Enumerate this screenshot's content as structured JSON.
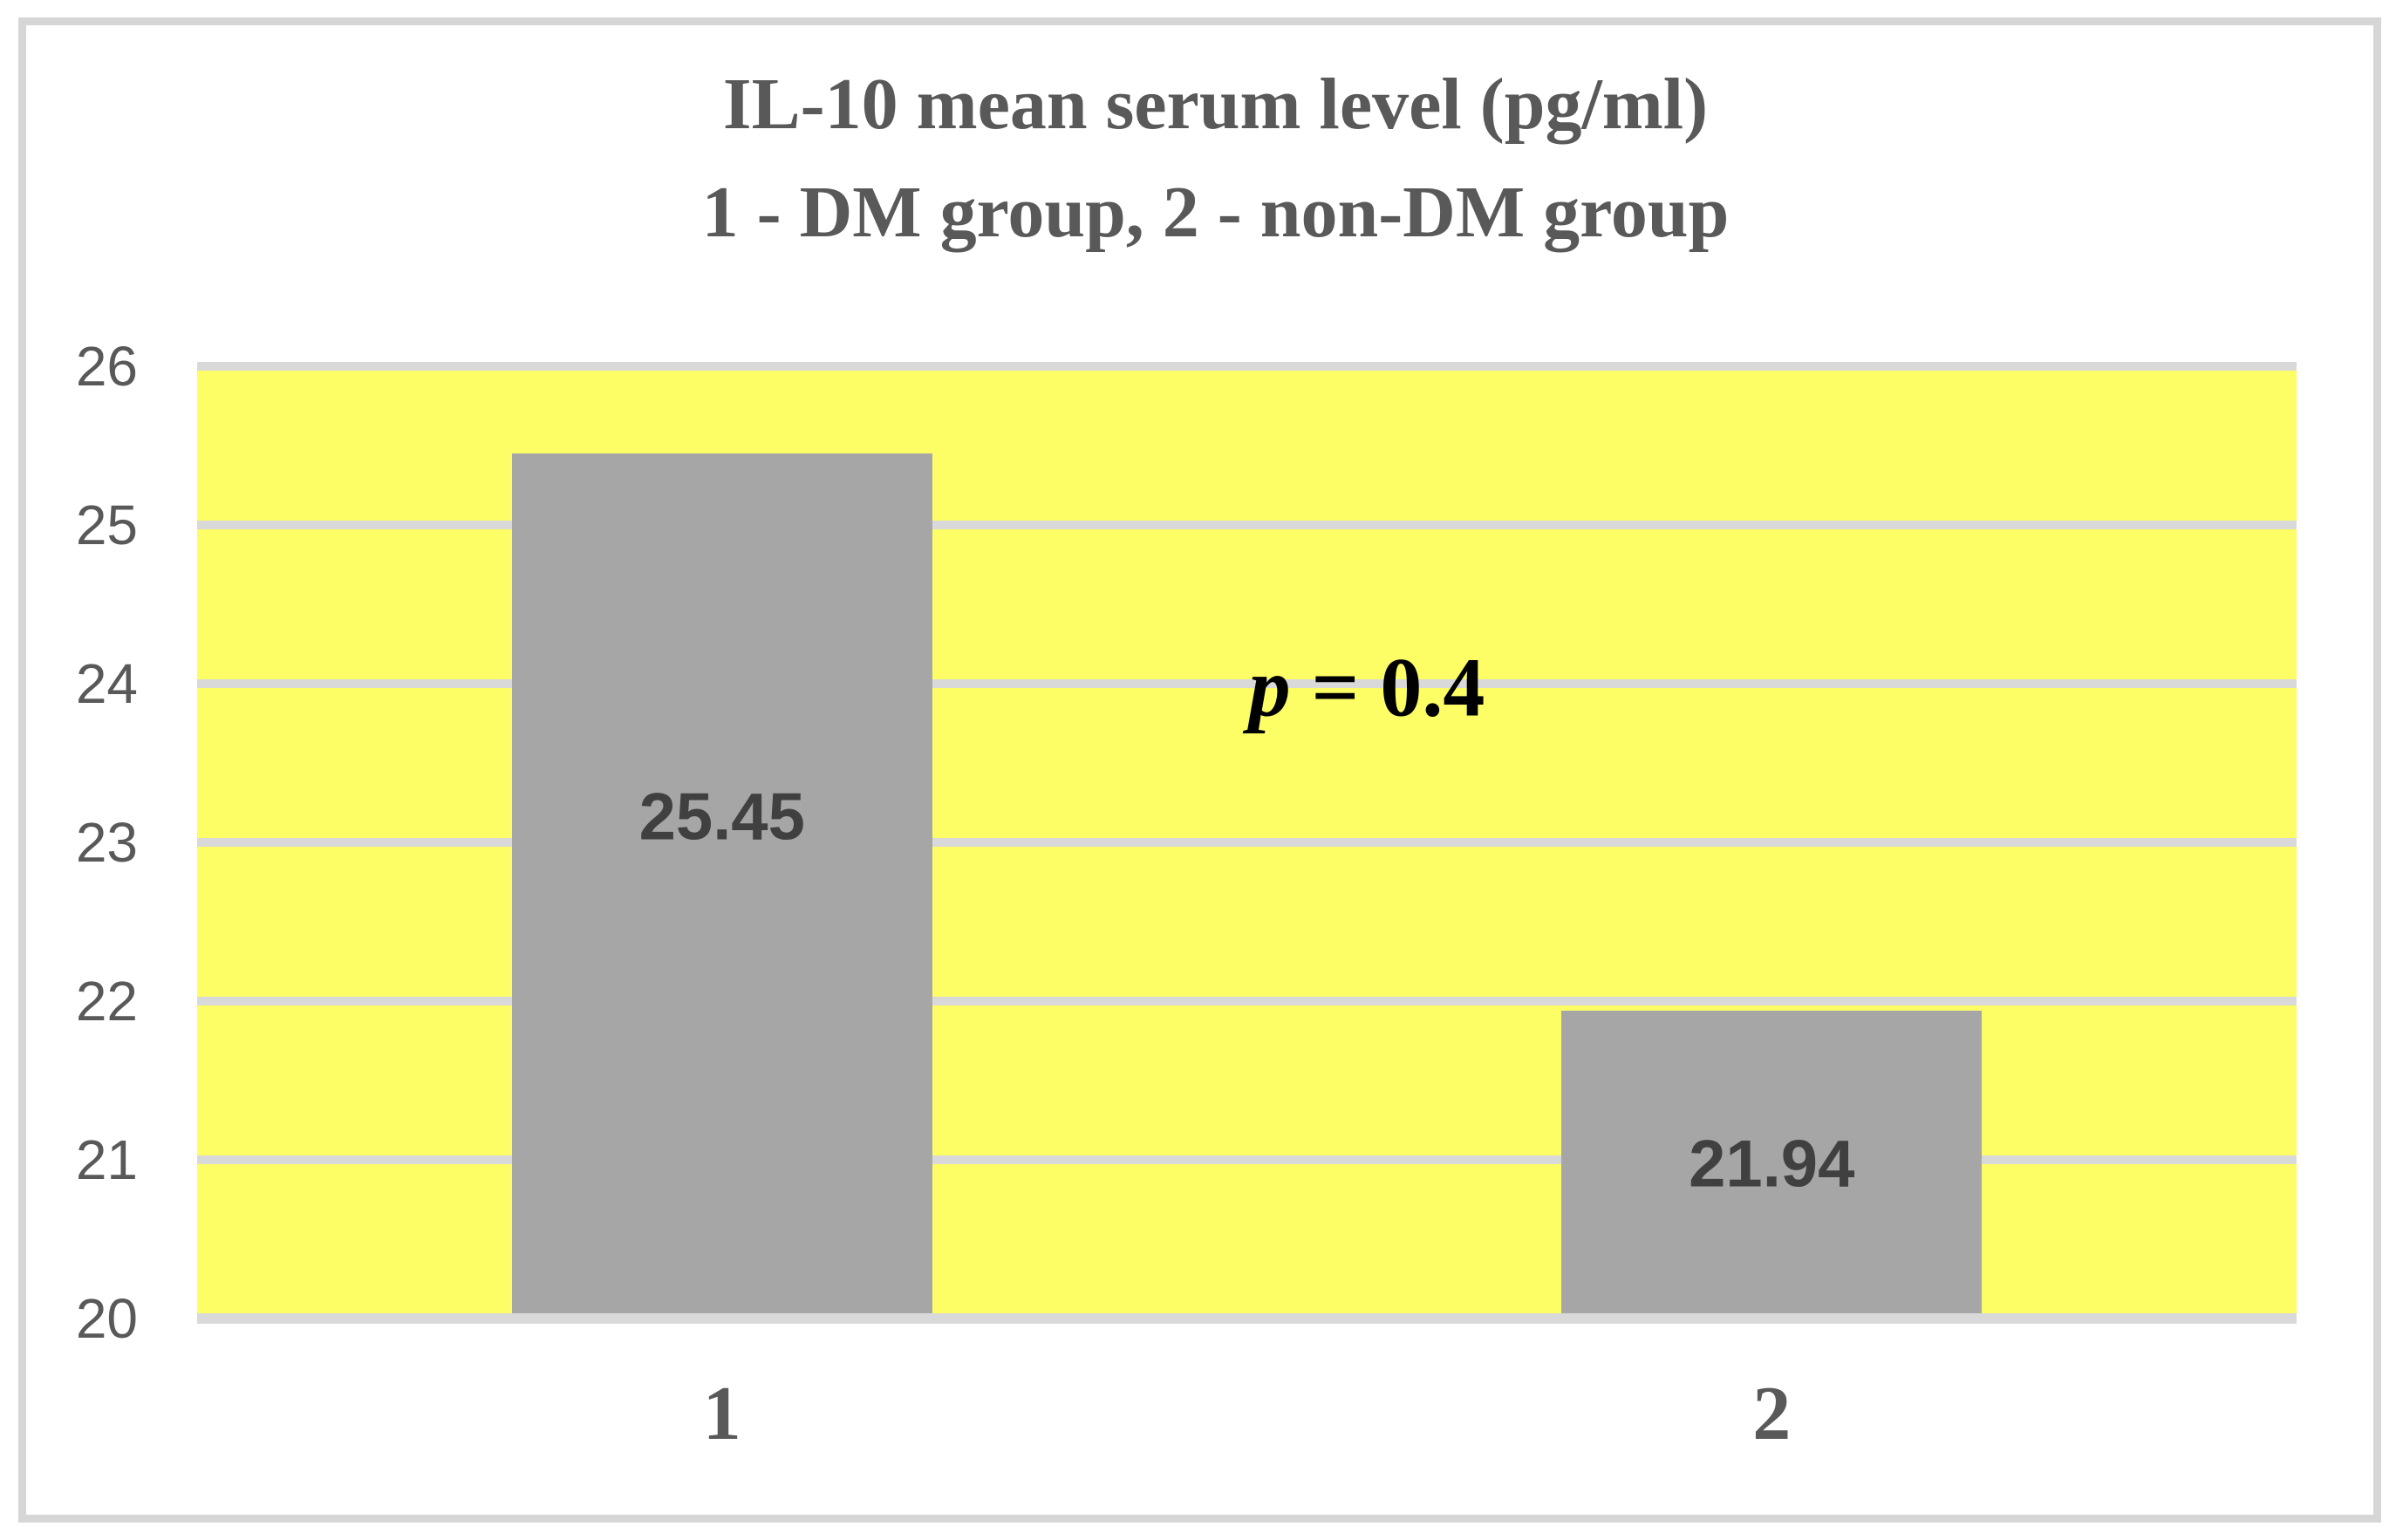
{
  "chart_data": {
    "type": "bar",
    "title_line1": "IL-10 mean serum level (pg/ml)",
    "title_line2": "1 - DM group, 2 - non-DM group",
    "categories": [
      "1",
      "2"
    ],
    "series": [
      {
        "name": "IL-10 mean serum level (pg/ml)",
        "values": [
          25.45,
          21.94
        ]
      }
    ],
    "bar_labels": [
      "25.45",
      "21.94"
    ],
    "yticks": [
      26,
      25,
      24,
      23,
      22,
      21,
      20
    ],
    "ylim": [
      20,
      26
    ],
    "xlabel": "",
    "ylabel": "",
    "grid": "horizontal",
    "legend": "none",
    "annotation": {
      "var": "p",
      "rest": " = 0.4"
    },
    "colors": {
      "plot_background": "#fdfd66",
      "bar_fill": "#a6a6a6",
      "gridline": "#d9d9d9",
      "frame_border": "#d6d6d6",
      "title_text": "#595959",
      "axis_tick_text": "#595959",
      "bar_label_text": "#404040",
      "annotation_text": "#000000",
      "page_background": "#ffffff"
    }
  }
}
